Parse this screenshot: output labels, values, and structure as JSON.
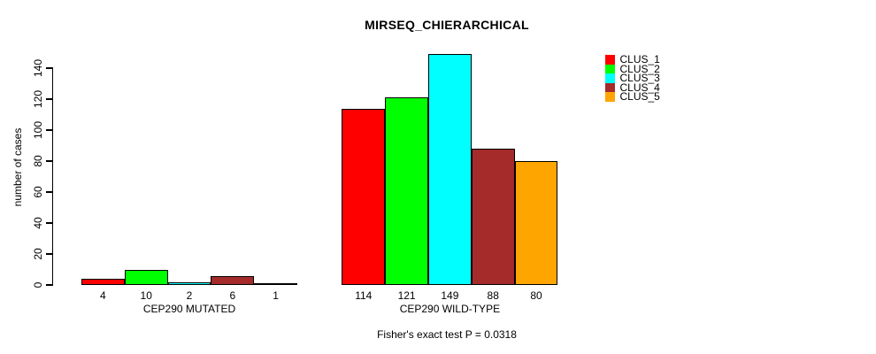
{
  "chart_data": {
    "type": "bar",
    "title": "MIRSEQ_CHIERARCHICAL",
    "categories": [
      "CEP290 MUTATED",
      "CEP290 WILD-TYPE"
    ],
    "series": [
      {
        "name": "CLUS_1",
        "color": "#FF0000",
        "values": [
          4,
          114
        ]
      },
      {
        "name": "CLUS_2",
        "color": "#00FF00",
        "values": [
          10,
          121
        ]
      },
      {
        "name": "CLUS_3",
        "color": "#00FFFF",
        "values": [
          2,
          149
        ]
      },
      {
        "name": "CLUS_4",
        "color": "#A52A2A",
        "values": [
          6,
          88
        ]
      },
      {
        "name": "CLUS_5",
        "color": "#FFA500",
        "values": [
          1,
          80
        ]
      }
    ],
    "ylabel": "number of cases",
    "ylim": [
      0,
      150
    ],
    "yticks": [
      0,
      20,
      40,
      60,
      80,
      100,
      120,
      140
    ],
    "grid": false,
    "legend_position": "top-right",
    "bar_value_labels_shown": true,
    "annotation": "Fisher's exact test P = 0.0318"
  }
}
